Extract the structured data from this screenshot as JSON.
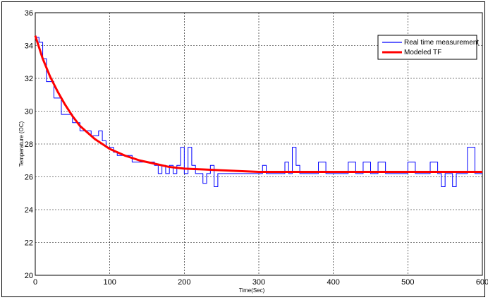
{
  "chart_data": {
    "type": "line",
    "xlabel": "Time(Sec)",
    "ylabel": "Temperature (OC)",
    "xlim": [
      0,
      600
    ],
    "ylim": [
      20,
      36
    ],
    "xticks": [
      0,
      100,
      200,
      300,
      400,
      500,
      600
    ],
    "yticks": [
      20,
      22,
      24,
      26,
      28,
      30,
      32,
      34,
      36
    ],
    "grid": true,
    "legend_position": "top-right",
    "series": [
      {
        "name": "Real time measurement",
        "color": "#0000ff",
        "style": "noisy-step",
        "x": [
          0,
          5,
          10,
          15,
          20,
          25,
          30,
          35,
          40,
          45,
          50,
          55,
          60,
          65,
          70,
          75,
          80,
          85,
          90,
          95,
          100,
          105,
          110,
          120,
          130,
          140,
          150,
          160,
          165,
          170,
          175,
          180,
          185,
          190,
          195,
          200,
          205,
          210,
          215,
          220,
          225,
          230,
          235,
          240,
          245,
          250,
          260,
          270,
          280,
          290,
          300,
          305,
          310,
          320,
          330,
          335,
          340,
          345,
          350,
          355,
          360,
          370,
          380,
          390,
          400,
          410,
          420,
          430,
          440,
          450,
          460,
          470,
          480,
          490,
          500,
          510,
          520,
          530,
          540,
          545,
          550,
          555,
          560,
          565,
          570,
          575,
          580,
          590,
          600
        ],
        "y": [
          34.5,
          34.2,
          33.2,
          31.8,
          31.8,
          30.8,
          30.8,
          29.8,
          29.8,
          29.8,
          29.3,
          29.3,
          28.8,
          28.8,
          28.8,
          28.5,
          28.5,
          28.8,
          28.2,
          27.8,
          27.8,
          27.5,
          27.3,
          27.3,
          26.9,
          26.9,
          26.9,
          26.7,
          26.2,
          26.7,
          26.2,
          26.7,
          26.2,
          26.7,
          27.8,
          26.2,
          27.8,
          26.7,
          26.2,
          26.2,
          25.6,
          26.2,
          26.7,
          25.4,
          26.2,
          26.2,
          26.2,
          26.2,
          26.2,
          26.2,
          26.2,
          26.7,
          26.2,
          26.2,
          26.2,
          26.9,
          26.2,
          27.8,
          26.7,
          26.2,
          26.2,
          26.2,
          26.9,
          26.2,
          26.2,
          26.2,
          26.9,
          26.2,
          26.9,
          26.2,
          26.9,
          26.2,
          26.2,
          26.2,
          26.9,
          26.2,
          26.2,
          26.9,
          26.2,
          25.4,
          26.2,
          26.2,
          25.4,
          26.2,
          26.2,
          26.2,
          27.8,
          26.2,
          26.2
        ]
      },
      {
        "name": "Modeled TF",
        "color": "#ff0000",
        "style": "smooth",
        "x": [
          0,
          10,
          20,
          30,
          40,
          50,
          60,
          70,
          80,
          90,
          100,
          120,
          140,
          160,
          180,
          200,
          225,
          250,
          275,
          300,
          350,
          400,
          450,
          500,
          550,
          600
        ],
        "y": [
          34.6,
          33.2,
          32.1,
          31.2,
          30.4,
          29.7,
          29.1,
          28.7,
          28.3,
          28.0,
          27.7,
          27.3,
          27.0,
          26.8,
          26.6,
          26.5,
          26.45,
          26.4,
          26.35,
          26.3,
          26.3,
          26.3,
          26.3,
          26.3,
          26.3,
          26.3
        ]
      }
    ]
  }
}
